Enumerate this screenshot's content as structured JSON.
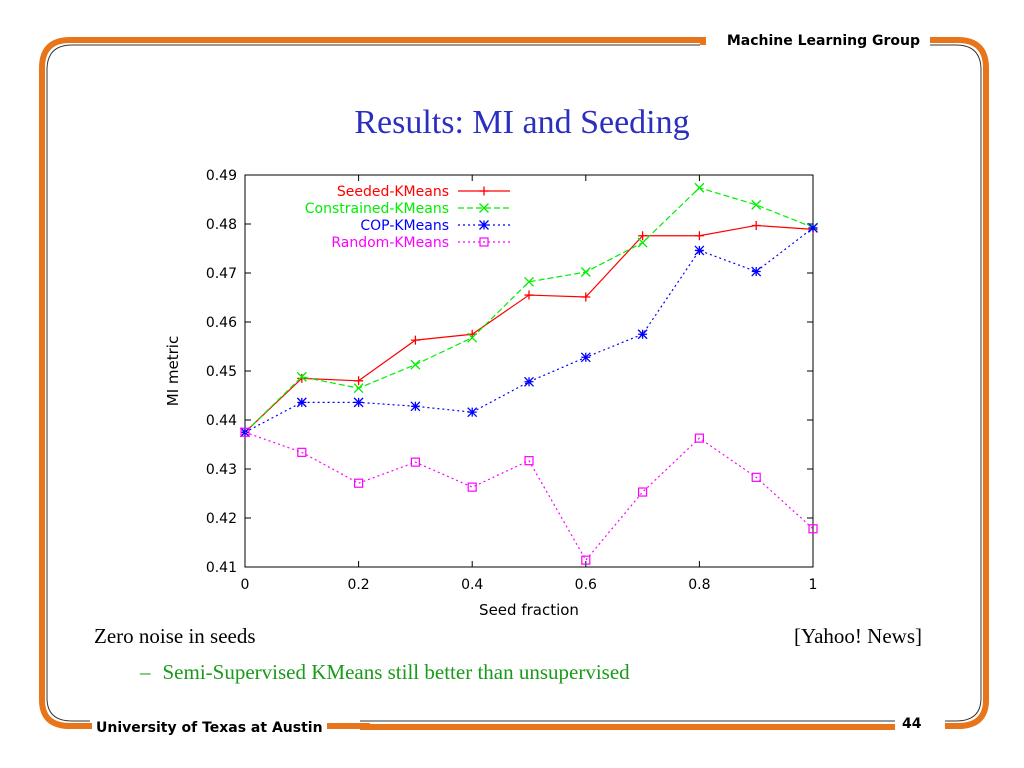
{
  "header": {
    "group": "Machine Learning Group"
  },
  "footer": {
    "university": "University of Texas at Austin",
    "page": "44"
  },
  "slide": {
    "title": "Results: MI and Seeding",
    "left_note": "Zero noise in seeds",
    "right_note": "[Yahoo! News]",
    "bullet_dash": "–",
    "bullet": "Semi-Supervised KMeans still better than unsupervised"
  },
  "colors": {
    "frame": "#e8751a",
    "title": "#2b2fc0",
    "bullet": "#1a9a1a"
  },
  "chart_data": {
    "type": "line",
    "xlabel": "Seed fraction",
    "ylabel": "MI metric",
    "xlim": [
      0,
      1
    ],
    "ylim": [
      0.41,
      0.49
    ],
    "xticks": [
      0,
      0.2,
      0.4,
      0.6,
      0.8,
      1
    ],
    "xtick_labels": [
      "0",
      "0.2",
      "0.4",
      "0.6",
      "0.8",
      "1"
    ],
    "yticks": [
      0.41,
      0.42,
      0.43,
      0.44,
      0.45,
      0.46,
      0.47,
      0.48,
      0.49
    ],
    "ytick_labels": [
      "0.41",
      "0.42",
      "0.43",
      "0.44",
      "0.45",
      "0.46",
      "0.47",
      "0.48",
      "0.49"
    ],
    "legend_position": "top-left",
    "x": [
      0,
      0.1,
      0.2,
      0.3,
      0.4,
      0.5,
      0.6,
      0.7,
      0.8,
      0.9,
      1.0
    ],
    "series": [
      {
        "name": "Seeded-KMeans",
        "color": "#ff0000",
        "marker": "plus",
        "dash": "solid",
        "values": [
          0.4375,
          0.4485,
          0.448,
          0.4563,
          0.4575,
          0.4655,
          0.4651,
          0.4776,
          0.4776,
          0.4797,
          0.4789
        ]
      },
      {
        "name": "Constrained-KMeans",
        "color": "#00ee00",
        "marker": "cross",
        "dash": "dashed",
        "values": [
          0.4375,
          0.4488,
          0.4465,
          0.4513,
          0.4568,
          0.4682,
          0.4702,
          0.4762,
          0.4874,
          0.4839,
          0.4793
        ]
      },
      {
        "name": "COP-KMeans",
        "color": "#0000ff",
        "marker": "star",
        "dash": "dotted",
        "values": [
          0.4375,
          0.4436,
          0.4436,
          0.4428,
          0.4416,
          0.4478,
          0.4528,
          0.4575,
          0.4746,
          0.4703,
          0.4792
        ]
      },
      {
        "name": "Random-KMeans",
        "color": "#ff00ff",
        "marker": "square",
        "dash": "dotted",
        "values": [
          0.4375,
          0.4334,
          0.4271,
          0.4314,
          0.4263,
          0.4317,
          0.4114,
          0.4253,
          0.4363,
          0.4283,
          0.4178
        ]
      }
    ]
  }
}
